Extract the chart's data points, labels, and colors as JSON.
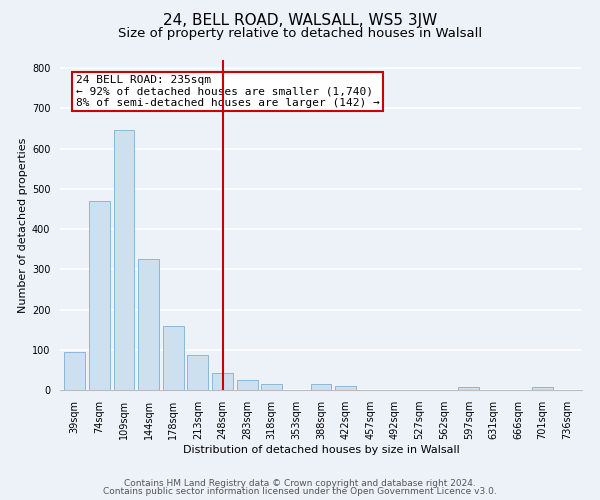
{
  "title": "24, BELL ROAD, WALSALL, WS5 3JW",
  "subtitle": "Size of property relative to detached houses in Walsall",
  "xlabel": "Distribution of detached houses by size in Walsall",
  "ylabel": "Number of detached properties",
  "bar_labels": [
    "39sqm",
    "74sqm",
    "109sqm",
    "144sqm",
    "178sqm",
    "213sqm",
    "248sqm",
    "283sqm",
    "318sqm",
    "353sqm",
    "388sqm",
    "422sqm",
    "457sqm",
    "492sqm",
    "527sqm",
    "562sqm",
    "597sqm",
    "631sqm",
    "666sqm",
    "701sqm",
    "736sqm"
  ],
  "bar_values": [
    95,
    470,
    645,
    325,
    158,
    88,
    42,
    26,
    14,
    0,
    15,
    10,
    0,
    0,
    0,
    0,
    8,
    0,
    0,
    7,
    0
  ],
  "bar_color": "#cce0f0",
  "bar_edge_color": "#7ab0d4",
  "vline_x": 6,
  "vline_color": "#cc0000",
  "annotation_text": "24 BELL ROAD: 235sqm\n← 92% of detached houses are smaller (1,740)\n8% of semi-detached houses are larger (142) →",
  "annotation_box_facecolor": "#ffffff",
  "annotation_box_edgecolor": "#cc0000",
  "ylim": [
    0,
    820
  ],
  "yticks": [
    0,
    100,
    200,
    300,
    400,
    500,
    600,
    700,
    800
  ],
  "footer_line1": "Contains HM Land Registry data © Crown copyright and database right 2024.",
  "footer_line2": "Contains public sector information licensed under the Open Government Licence v3.0.",
  "bg_color": "#edf2f9",
  "grid_color": "#ffffff",
  "title_fontsize": 11,
  "subtitle_fontsize": 9.5,
  "axis_label_fontsize": 8,
  "tick_fontsize": 7,
  "annotation_fontsize": 8,
  "footer_fontsize": 6.5
}
